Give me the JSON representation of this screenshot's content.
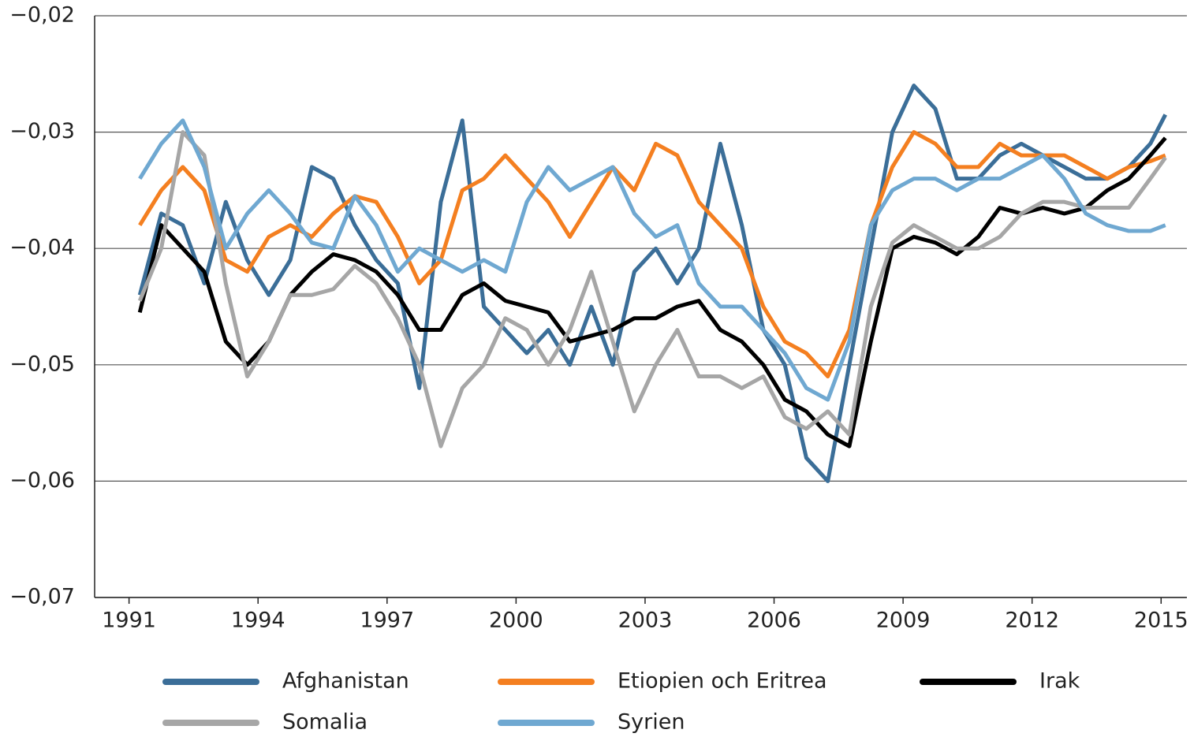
{
  "chart_data": {
    "type": "line",
    "x": [
      1991.25,
      1991.75,
      1992.25,
      1992.75,
      1993.25,
      1993.75,
      1994.25,
      1994.75,
      1995.25,
      1995.75,
      1996.25,
      1996.75,
      1997.25,
      1997.75,
      1998.25,
      1998.75,
      1999.25,
      1999.75,
      2000.25,
      2000.75,
      2001.25,
      2001.75,
      2002.25,
      2002.75,
      2003.25,
      2003.75,
      2004.25,
      2004.75,
      2005.25,
      2005.75,
      2006.25,
      2006.75,
      2007.25,
      2007.75,
      2008.25,
      2008.75,
      2009.25,
      2009.75,
      2010.25,
      2010.75,
      2011.25,
      2011.75,
      2012.25,
      2012.75,
      2013.25,
      2013.75,
      2014.25,
      2014.75,
      2015.1
    ],
    "series": [
      {
        "name": "Afghanistan",
        "color": "#3b6e98",
        "values": [
          -0.044,
          -0.037,
          -0.038,
          -0.043,
          -0.036,
          -0.041,
          -0.044,
          -0.041,
          -0.033,
          -0.034,
          -0.038,
          -0.041,
          -0.043,
          -0.052,
          -0.036,
          -0.029,
          -0.045,
          -0.047,
          -0.049,
          -0.047,
          -0.05,
          -0.045,
          -0.05,
          -0.042,
          -0.04,
          -0.043,
          -0.04,
          -0.031,
          -0.038,
          -0.047,
          -0.05,
          -0.058,
          -0.06,
          -0.05,
          -0.04,
          -0.03,
          -0.026,
          -0.028,
          -0.034,
          -0.034,
          -0.032,
          -0.031,
          -0.032,
          -0.033,
          -0.034,
          -0.034,
          -0.033,
          -0.031,
          -0.0285
        ]
      },
      {
        "name": "Etiopien och Eritrea",
        "color": "#f47f20",
        "values": [
          -0.038,
          -0.035,
          -0.033,
          -0.035,
          -0.041,
          -0.042,
          -0.039,
          -0.038,
          -0.039,
          -0.037,
          -0.0355,
          -0.036,
          -0.039,
          -0.043,
          -0.041,
          -0.035,
          -0.034,
          -0.032,
          -0.034,
          -0.036,
          -0.039,
          -0.036,
          -0.033,
          -0.035,
          -0.031,
          -0.032,
          -0.036,
          -0.038,
          -0.04,
          -0.045,
          -0.048,
          -0.049,
          -0.051,
          -0.047,
          -0.038,
          -0.033,
          -0.03,
          -0.031,
          -0.033,
          -0.033,
          -0.031,
          -0.032,
          -0.032,
          -0.032,
          -0.033,
          -0.034,
          -0.033,
          -0.0325,
          -0.032
        ]
      },
      {
        "name": "Irak",
        "color": "#000000",
        "values": [
          -0.0455,
          -0.038,
          -0.04,
          -0.042,
          -0.048,
          -0.05,
          -0.048,
          -0.044,
          -0.042,
          -0.0405,
          -0.041,
          -0.042,
          -0.044,
          -0.047,
          -0.047,
          -0.044,
          -0.043,
          -0.0445,
          -0.045,
          -0.0455,
          -0.048,
          -0.0475,
          -0.047,
          -0.046,
          -0.046,
          -0.045,
          -0.0445,
          -0.047,
          -0.048,
          -0.05,
          -0.053,
          -0.054,
          -0.056,
          -0.057,
          -0.048,
          -0.04,
          -0.039,
          -0.0395,
          -0.0405,
          -0.039,
          -0.0365,
          -0.037,
          -0.0365,
          -0.037,
          -0.0365,
          -0.035,
          -0.034,
          -0.032,
          -0.0305
        ]
      },
      {
        "name": "Somalia",
        "color": "#a6a6a6",
        "values": [
          -0.0445,
          -0.04,
          -0.03,
          -0.032,
          -0.043,
          -0.051,
          -0.048,
          -0.044,
          -0.044,
          -0.0435,
          -0.0415,
          -0.043,
          -0.046,
          -0.05,
          -0.057,
          -0.052,
          -0.05,
          -0.046,
          -0.047,
          -0.05,
          -0.047,
          -0.042,
          -0.048,
          -0.054,
          -0.05,
          -0.047,
          -0.051,
          -0.051,
          -0.052,
          -0.051,
          -0.0545,
          -0.0555,
          -0.054,
          -0.056,
          -0.045,
          -0.0395,
          -0.038,
          -0.039,
          -0.04,
          -0.04,
          -0.039,
          -0.037,
          -0.036,
          -0.036,
          -0.0365,
          -0.0365,
          -0.0365,
          -0.034,
          -0.0322
        ]
      },
      {
        "name": "Syrien",
        "color": "#6fa8d1",
        "values": [
          -0.034,
          -0.031,
          -0.029,
          -0.033,
          -0.04,
          -0.037,
          -0.035,
          -0.037,
          -0.0395,
          -0.04,
          -0.0355,
          -0.038,
          -0.042,
          -0.04,
          -0.041,
          -0.042,
          -0.041,
          -0.042,
          -0.036,
          -0.033,
          -0.035,
          -0.034,
          -0.033,
          -0.037,
          -0.039,
          -0.038,
          -0.043,
          -0.045,
          -0.045,
          -0.047,
          -0.049,
          -0.052,
          -0.053,
          -0.048,
          -0.038,
          -0.035,
          -0.034,
          -0.034,
          -0.035,
          -0.034,
          -0.034,
          -0.033,
          -0.032,
          -0.034,
          -0.037,
          -0.038,
          -0.0385,
          -0.0385,
          -0.038
        ]
      }
    ],
    "xlim": [
      1990.2,
      2015.6
    ],
    "xticks": [
      1991,
      1994,
      1997,
      2000,
      2003,
      2006,
      2009,
      2012,
      2015
    ],
    "ylim": [
      -0.07,
      -0.02
    ],
    "yticks": [
      {
        "value": -0.07,
        "label": "−0,07"
      },
      {
        "value": -0.06,
        "label": "−0,06"
      },
      {
        "value": -0.05,
        "label": "−0,05"
      },
      {
        "value": -0.04,
        "label": "−0,04"
      },
      {
        "value": -0.03,
        "label": "−0,03"
      },
      {
        "value": -0.02,
        "label": "−0,02"
      }
    ],
    "grid": true,
    "legend": "bottom"
  }
}
